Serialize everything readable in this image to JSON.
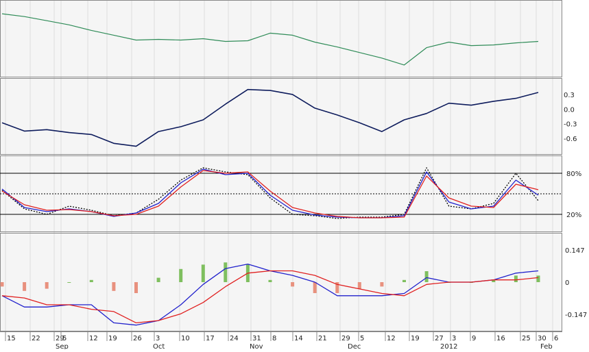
{
  "chart_data": [
    {
      "type": "line",
      "panel": "price",
      "color": "#2e8b57",
      "x": [
        "Sep 15",
        "Sep 22",
        "Sep 29",
        "Sep 5",
        "Sep 12",
        "Sep 19",
        "Sep 26",
        "Oct 3",
        "Oct 10",
        "Oct 17",
        "Oct 24",
        "Oct 31",
        "Nov 8",
        "Nov 14",
        "Nov 21",
        "Nov 29",
        "Dec 5",
        "Dec 12",
        "Dec 19",
        "Dec 27",
        "Jan 3",
        "Jan 9",
        "Jan 16",
        "Jan 25",
        "Jan 30"
      ],
      "values": [
        86,
        82,
        76,
        70,
        62,
        55,
        48,
        49,
        48,
        50,
        46,
        47,
        58,
        55,
        45,
        38,
        30,
        22,
        12,
        37,
        45,
        40,
        41,
        44,
        46
      ]
    },
    {
      "type": "line",
      "panel": "momentum",
      "color": "#0d1b5c",
      "ticks": [
        "0.3",
        "0.0",
        "-0.3",
        "-0.6"
      ],
      "ylim": [
        -0.85,
        0.55
      ],
      "values": [
        -0.28,
        -0.45,
        -0.42,
        -0.48,
        -0.52,
        -0.7,
        -0.76,
        -0.46,
        -0.36,
        -0.22,
        0.1,
        0.4,
        0.38,
        0.3,
        0.02,
        -0.12,
        -0.28,
        -0.46,
        -0.22,
        -0.09,
        0.12,
        0.08,
        0.16,
        0.22,
        0.34
      ]
    },
    {
      "type": "line",
      "panel": "stochastic",
      "ticks": [
        "80%",
        "20%"
      ],
      "ylim": [
        0,
        100
      ],
      "series": [
        {
          "color": "#000000",
          "style": "dotted",
          "values": [
            55,
            28,
            20,
            32,
            26,
            18,
            22,
            42,
            70,
            88,
            82,
            78,
            44,
            20,
            18,
            14,
            16,
            16,
            20,
            88,
            32,
            28,
            36,
            80,
            40
          ]
        },
        {
          "color": "#1f1fcc",
          "style": "solid",
          "values": [
            57,
            30,
            24,
            28,
            24,
            17,
            22,
            36,
            66,
            86,
            78,
            80,
            48,
            26,
            19,
            16,
            15,
            15,
            18,
            82,
            38,
            28,
            32,
            70,
            48
          ]
        },
        {
          "color": "#e01f1f",
          "style": "solid",
          "values": [
            54,
            34,
            26,
            27,
            24,
            18,
            20,
            32,
            60,
            84,
            80,
            82,
            54,
            30,
            22,
            17,
            15,
            15,
            16,
            76,
            44,
            32,
            30,
            64,
            56
          ]
        }
      ]
    },
    {
      "type": "bar",
      "panel": "macd",
      "ticks": [
        "0.147",
        "0",
        "-0.147"
      ],
      "ylim": [
        -0.2,
        0.2
      ],
      "categories": [
        "Sep 15",
        "Sep 22",
        "Sep 29",
        "Sep 5",
        "Sep 12",
        "Sep 19",
        "Sep 26",
        "Oct 3",
        "Oct 10",
        "Oct 17",
        "Oct 24",
        "Oct 31",
        "Nov 8",
        "Nov 14",
        "Nov 21",
        "Nov 29",
        "Dec 5",
        "Dec 12",
        "Dec 19",
        "Dec 27",
        "Jan 3",
        "Jan 9",
        "Jan 16",
        "Jan 25",
        "Jan 30"
      ],
      "histogram": [
        -0.02,
        -0.04,
        -0.03,
        0.0,
        0.01,
        -0.04,
        -0.05,
        0.02,
        0.06,
        0.08,
        0.09,
        0.08,
        0.01,
        -0.02,
        -0.05,
        -0.05,
        -0.03,
        -0.02,
        0.01,
        0.05,
        0.0,
        0.0,
        0.01,
        0.03,
        0.03
      ],
      "series": [
        {
          "color": "#1f1fcc",
          "values": [
            -0.06,
            -0.11,
            -0.11,
            -0.1,
            -0.1,
            -0.18,
            -0.19,
            -0.17,
            -0.1,
            -0.01,
            0.06,
            0.08,
            0.05,
            0.03,
            0.0,
            -0.06,
            -0.06,
            -0.06,
            -0.05,
            0.02,
            0.0,
            0.0,
            0.01,
            0.04,
            0.05
          ]
        },
        {
          "color": "#e01f1f",
          "values": [
            -0.06,
            -0.07,
            -0.1,
            -0.1,
            -0.12,
            -0.13,
            -0.18,
            -0.17,
            -0.14,
            -0.09,
            -0.02,
            0.04,
            0.05,
            0.05,
            0.03,
            -0.01,
            -0.03,
            -0.05,
            -0.06,
            -0.01,
            -0.0,
            0.0,
            0.01,
            0.01,
            0.02
          ]
        }
      ]
    }
  ],
  "x_tick_labels": [
    "15",
    "22",
    "29",
    "5",
    "12",
    "19",
    "26",
    "3",
    "10",
    "17",
    "24",
    "31",
    "8",
    "14",
    "21",
    "29",
    "5",
    "12",
    "19",
    "27",
    "3",
    "9",
    "16",
    "25",
    "30",
    "6"
  ],
  "month_labels": [
    "Sep",
    "Oct",
    "Nov",
    "Dec",
    "2012",
    "Feb"
  ],
  "colors": {
    "hist_positive": "#7fbf5f",
    "hist_negative": "#e8917e",
    "grid": "#dddddd",
    "panel_bg": "#f5f5f5"
  }
}
